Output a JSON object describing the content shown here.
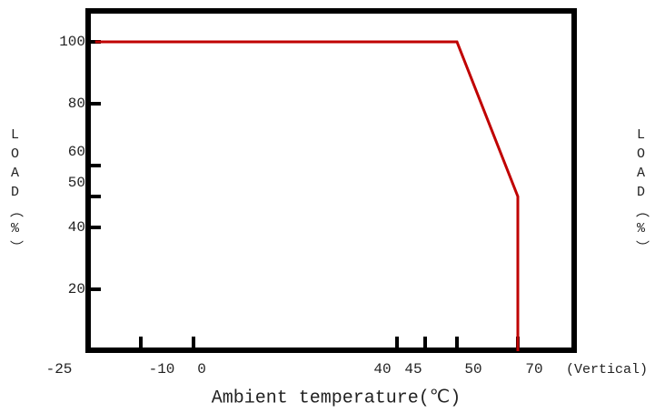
{
  "chart_data": {
    "type": "line",
    "x_label": "Ambient temperature(℃)",
    "y_label": "LOAD（%）",
    "y2_label": "LOAD（%）",
    "x_note": "(Vertical)",
    "x": [
      -23,
      50,
      70,
      70
    ],
    "series": [
      {
        "color": "#c00000",
        "values": [
          100,
          100,
          50,
          0
        ]
      }
    ],
    "xlim": [
      -25,
      70
    ],
    "xticks": [
      -25,
      -10,
      0,
      40,
      45,
      50,
      70
    ],
    "ylim": [
      0,
      110
    ],
    "yticks": [
      20,
      40,
      50,
      60,
      80,
      100
    ]
  }
}
